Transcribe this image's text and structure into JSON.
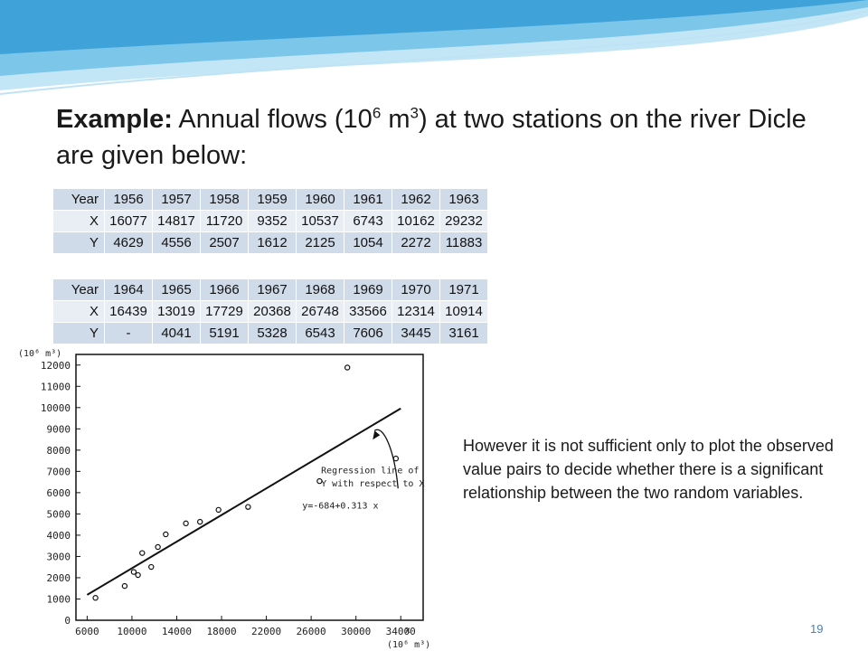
{
  "slide": {
    "title_bold": "Example:",
    "title_text_1": " Annual flows (10",
    "title_sup_1": "6",
    "title_text_2": " m",
    "title_sup_2": "3",
    "title_text_3": ") at two stations on the river Dicle are given below:",
    "note": "However it is not sufficient only to plot the observed value pairs to decide whether there is a significant relationship between the two random variables.",
    "page_number": "19",
    "wave_colors": [
      "#3fa3d9",
      "#7cc6ea",
      "#c3e6f7"
    ]
  },
  "table1": {
    "rows": [
      [
        "Year",
        "1956",
        "1957",
        "1958",
        "1959",
        "1960",
        "1961",
        "1962",
        "1963"
      ],
      [
        "X",
        "16077",
        "14817",
        "11720",
        "9352",
        "10537",
        "6743",
        "10162",
        "29232"
      ],
      [
        "Y",
        "4629",
        "4556",
        "2507",
        "1612",
        "2125",
        "1054",
        "2272",
        "11883"
      ]
    ]
  },
  "table2": {
    "rows": [
      [
        "Year",
        "1964",
        "1965",
        "1966",
        "1967",
        "1968",
        "1969",
        "1970",
        "1971"
      ],
      [
        "X",
        "16439",
        "13019",
        "17729",
        "20368",
        "26748",
        "33566",
        "12314",
        "10914"
      ],
      [
        "Y",
        "-",
        "4041",
        "5191",
        "5328",
        "6543",
        "7606",
        "3445",
        "3161"
      ]
    ]
  },
  "chart_data": {
    "type": "scatter",
    "y_unit_label": "(10⁶ m³)",
    "x_unit_label": "(10⁶ m³)",
    "x_axis_symbol": "x",
    "xlim": [
      5000,
      36000
    ],
    "ylim": [
      0,
      12500
    ],
    "x_ticks": [
      "6000",
      "10000",
      "14000",
      "18000",
      "22000",
      "26000",
      "30000",
      "34000"
    ],
    "y_ticks": [
      "0",
      "1000",
      "2000",
      "3000",
      "4000",
      "5000",
      "6000",
      "7000",
      "8000",
      "9000",
      "10000",
      "11000",
      "12000"
    ],
    "points": [
      [
        6743,
        1054
      ],
      [
        9352,
        1612
      ],
      [
        10162,
        2272
      ],
      [
        10537,
        2125
      ],
      [
        10914,
        3161
      ],
      [
        11720,
        2507
      ],
      [
        12314,
        3445
      ],
      [
        13019,
        4041
      ],
      [
        14817,
        4556
      ],
      [
        16077,
        4629
      ],
      [
        17729,
        5191
      ],
      [
        20368,
        5328
      ],
      [
        26748,
        6543
      ],
      [
        33566,
        7606
      ],
      [
        29232,
        11883
      ]
    ],
    "regression": {
      "intercept": -684,
      "slope": 0.313,
      "x_range": [
        6000,
        34000
      ]
    },
    "annotation": [
      "Regression line of",
      "Y with respect to X"
    ],
    "equation": "y=-684+0.313  x"
  }
}
